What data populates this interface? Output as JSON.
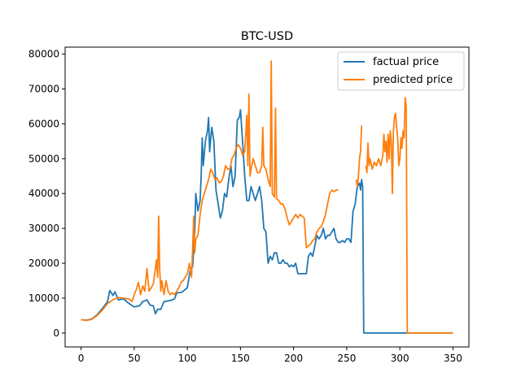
{
  "chart_data": {
    "type": "line",
    "title": "BTC-USD",
    "xlabel": "",
    "ylabel": "",
    "xlim": [
      -15,
      365
    ],
    "ylim": [
      -4000,
      82000
    ],
    "xticks": [
      0,
      50,
      100,
      150,
      200,
      250,
      300,
      350
    ],
    "yticks": [
      0,
      10000,
      20000,
      30000,
      40000,
      50000,
      60000,
      70000,
      80000
    ],
    "grid": false,
    "legend": "top-right",
    "series": [
      {
        "name": "factual price",
        "color": "#1f77b4",
        "points": [
          [
            0,
            3800
          ],
          [
            5,
            3700
          ],
          [
            10,
            4000
          ],
          [
            15,
            5200
          ],
          [
            20,
            7000
          ],
          [
            25,
            9000
          ],
          [
            27,
            12200
          ],
          [
            30,
            10800
          ],
          [
            32,
            11800
          ],
          [
            35,
            9500
          ],
          [
            40,
            9800
          ],
          [
            45,
            8500
          ],
          [
            50,
            7500
          ],
          [
            55,
            7800
          ],
          [
            58,
            9000
          ],
          [
            62,
            9500
          ],
          [
            65,
            8000
          ],
          [
            68,
            7800
          ],
          [
            70,
            5500
          ],
          [
            72,
            6800
          ],
          [
            75,
            6800
          ],
          [
            78,
            9000
          ],
          [
            82,
            9200
          ],
          [
            85,
            9400
          ],
          [
            88,
            9800
          ],
          [
            90,
            11500
          ],
          [
            95,
            11700
          ],
          [
            100,
            13000
          ],
          [
            103,
            18500
          ],
          [
            105,
            19000
          ],
          [
            107,
            29000
          ],
          [
            108,
            40000
          ],
          [
            110,
            35000
          ],
          [
            112,
            38000
          ],
          [
            113,
            45000
          ],
          [
            114,
            56000
          ],
          [
            115,
            48000
          ],
          [
            117,
            55000
          ],
          [
            119,
            58000
          ],
          [
            120,
            61800
          ],
          [
            121,
            52000
          ],
          [
            123,
            59000
          ],
          [
            125,
            55000
          ],
          [
            127,
            41000
          ],
          [
            129,
            37000
          ],
          [
            131,
            33000
          ],
          [
            133,
            35000
          ],
          [
            135,
            40000
          ],
          [
            137,
            39000
          ],
          [
            139,
            44000
          ],
          [
            141,
            48000
          ],
          [
            143,
            42000
          ],
          [
            145,
            45000
          ],
          [
            147,
            61000
          ],
          [
            149,
            62000
          ],
          [
            150,
            64000
          ],
          [
            152,
            55000
          ],
          [
            154,
            45000
          ],
          [
            156,
            38000
          ],
          [
            158,
            38000
          ],
          [
            160,
            42000
          ],
          [
            162,
            40000
          ],
          [
            164,
            38000
          ],
          [
            166,
            40000
          ],
          [
            168,
            42000
          ],
          [
            170,
            38000
          ],
          [
            172,
            30000
          ],
          [
            174,
            29000
          ],
          [
            176,
            20000
          ],
          [
            178,
            22000
          ],
          [
            180,
            21000
          ],
          [
            182,
            23000
          ],
          [
            184,
            23000
          ],
          [
            186,
            20000
          ],
          [
            188,
            20000
          ],
          [
            190,
            21000
          ],
          [
            192,
            20000
          ],
          [
            194,
            20000
          ],
          [
            196,
            19000
          ],
          [
            198,
            19500
          ],
          [
            200,
            19000
          ],
          [
            202,
            20000
          ],
          [
            204,
            17000
          ],
          [
            206,
            17000
          ],
          [
            208,
            17000
          ],
          [
            210,
            17000
          ],
          [
            212,
            17000
          ],
          [
            214,
            22000
          ],
          [
            216,
            23000
          ],
          [
            218,
            22000
          ],
          [
            220,
            25000
          ],
          [
            222,
            28000
          ],
          [
            224,
            27000
          ],
          [
            226,
            28000
          ],
          [
            228,
            30000
          ],
          [
            230,
            27000
          ],
          [
            232,
            28000
          ],
          [
            234,
            28000
          ],
          [
            236,
            29000
          ],
          [
            238,
            30000
          ],
          [
            240,
            27000
          ],
          [
            242,
            26000
          ],
          [
            244,
            26000
          ],
          [
            246,
            26500
          ],
          [
            248,
            26000
          ],
          [
            250,
            27000
          ],
          [
            252,
            27000
          ],
          [
            254,
            26000
          ],
          [
            256,
            35000
          ],
          [
            258,
            37000
          ],
          [
            260,
            42000
          ],
          [
            262,
            43000
          ],
          [
            263,
            41000
          ],
          [
            264,
            44000
          ],
          [
            265,
            42000
          ],
          [
            266,
            0
          ],
          [
            306,
            0
          ],
          [
            350,
            0
          ]
        ]
      },
      {
        "name": "predicted price",
        "color": "#ff7f0e",
        "points": [
          [
            0,
            3800
          ],
          [
            5,
            3600
          ],
          [
            10,
            3900
          ],
          [
            15,
            5000
          ],
          [
            20,
            6500
          ],
          [
            25,
            8500
          ],
          [
            30,
            9500
          ],
          [
            35,
            10200
          ],
          [
            40,
            10000
          ],
          [
            45,
            9800
          ],
          [
            48,
            9000
          ],
          [
            50,
            11000
          ],
          [
            52,
            12500
          ],
          [
            54,
            14500
          ],
          [
            56,
            11000
          ],
          [
            58,
            13500
          ],
          [
            60,
            12000
          ],
          [
            62,
            18500
          ],
          [
            64,
            12000
          ],
          [
            66,
            13000
          ],
          [
            68,
            14000
          ],
          [
            70,
            18500
          ],
          [
            71,
            21000
          ],
          [
            72,
            16000
          ],
          [
            73,
            33500
          ],
          [
            74,
            18000
          ],
          [
            75,
            12000
          ],
          [
            76,
            15000
          ],
          [
            78,
            11000
          ],
          [
            80,
            15000
          ],
          [
            82,
            12000
          ],
          [
            84,
            11000
          ],
          [
            86,
            11500
          ],
          [
            88,
            11000
          ],
          [
            90,
            12000
          ],
          [
            92,
            13000
          ],
          [
            94,
            14500
          ],
          [
            96,
            15000
          ],
          [
            98,
            16000
          ],
          [
            100,
            17000
          ],
          [
            102,
            20000
          ],
          [
            104,
            16000
          ],
          [
            105,
            24000
          ],
          [
            106,
            33500
          ],
          [
            107,
            23000
          ],
          [
            108,
            27000
          ],
          [
            110,
            28000
          ],
          [
            112,
            34000
          ],
          [
            114,
            38000
          ],
          [
            116,
            40000
          ],
          [
            118,
            42000
          ],
          [
            120,
            44000
          ],
          [
            122,
            47000
          ],
          [
            124,
            46000
          ],
          [
            126,
            44000
          ],
          [
            128,
            44500
          ],
          [
            130,
            43000
          ],
          [
            132,
            43500
          ],
          [
            134,
            45000
          ],
          [
            136,
            48000
          ],
          [
            138,
            47000
          ],
          [
            140,
            47000
          ],
          [
            142,
            50000
          ],
          [
            144,
            51000
          ],
          [
            146,
            53000
          ],
          [
            148,
            54000
          ],
          [
            150,
            53000
          ],
          [
            152,
            51000
          ],
          [
            154,
            52000
          ],
          [
            156,
            62500
          ],
          [
            157,
            48000
          ],
          [
            158,
            68500
          ],
          [
            159,
            45000
          ],
          [
            160,
            47000
          ],
          [
            162,
            50000
          ],
          [
            164,
            48000
          ],
          [
            166,
            46000
          ],
          [
            168,
            46000
          ],
          [
            170,
            48000
          ],
          [
            171,
            59000
          ],
          [
            172,
            48000
          ],
          [
            174,
            47000
          ],
          [
            176,
            44000
          ],
          [
            178,
            42000
          ],
          [
            179,
            78000
          ],
          [
            180,
            40000
          ],
          [
            182,
            39000
          ],
          [
            183,
            64500
          ],
          [
            184,
            38500
          ],
          [
            186,
            38000
          ],
          [
            188,
            37000
          ],
          [
            190,
            37000
          ],
          [
            192,
            35500
          ],
          [
            194,
            33000
          ],
          [
            196,
            31000
          ],
          [
            198,
            32000
          ],
          [
            200,
            33000
          ],
          [
            202,
            34000
          ],
          [
            204,
            33000
          ],
          [
            206,
            34000
          ],
          [
            208,
            33500
          ],
          [
            210,
            33000
          ],
          [
            212,
            24500
          ],
          [
            214,
            25000
          ],
          [
            216,
            25500
          ],
          [
            218,
            26500
          ],
          [
            220,
            27000
          ],
          [
            222,
            29000
          ],
          [
            224,
            30000
          ],
          [
            226,
            30500
          ],
          [
            228,
            32000
          ],
          [
            230,
            34000
          ],
          [
            232,
            37000
          ],
          [
            234,
            40000
          ],
          [
            236,
            41000
          ],
          [
            238,
            40500
          ],
          [
            240,
            41000
          ],
          [
            242,
            41000
          ],
          [
            243,
            null
          ],
          [
            258,
            null
          ],
          [
            259,
            44000
          ],
          [
            260,
            42000
          ],
          [
            261,
            45000
          ],
          [
            262,
            50000
          ],
          [
            263,
            52000
          ],
          [
            264,
            59500
          ],
          [
            265,
            null
          ],
          [
            267,
            null
          ],
          [
            268,
            48000
          ],
          [
            269,
            46000
          ],
          [
            270,
            54500
          ],
          [
            271,
            48000
          ],
          [
            272,
            50000
          ],
          [
            274,
            47000
          ],
          [
            276,
            49000
          ],
          [
            278,
            48000
          ],
          [
            280,
            50000
          ],
          [
            282,
            48000
          ],
          [
            284,
            51000
          ],
          [
            285,
            57000
          ],
          [
            286,
            52000
          ],
          [
            287,
            55000
          ],
          [
            288,
            49000
          ],
          [
            289,
            57000
          ],
          [
            290,
            50000
          ],
          [
            291,
            58000
          ],
          [
            292,
            55000
          ],
          [
            293,
            40000
          ],
          [
            294,
            58000
          ],
          [
            295,
            62000
          ],
          [
            296,
            63000
          ],
          [
            297,
            59000
          ],
          [
            298,
            56000
          ],
          [
            299,
            48000
          ],
          [
            300,
            50000
          ],
          [
            301,
            56000
          ],
          [
            302,
            53000
          ],
          [
            303,
            58000
          ],
          [
            304,
            56000
          ],
          [
            305,
            67500
          ],
          [
            306,
            65000
          ],
          [
            307,
            0
          ],
          [
            350,
            0
          ]
        ]
      }
    ]
  }
}
